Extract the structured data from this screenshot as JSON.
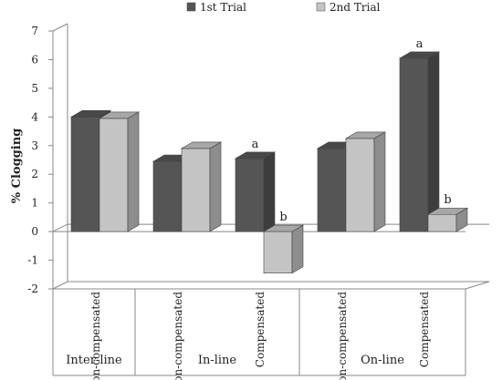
{
  "chart_data": {
    "type": "bar",
    "ylabel": "% Clogging",
    "ylim": [
      -2,
      7
    ],
    "yticks": [
      "7",
      "6",
      "5",
      "4",
      "3",
      "2",
      "1",
      "0",
      "-1",
      "-2"
    ],
    "grid": false,
    "legend_position": "top",
    "groups": [
      "Inter-line",
      "In-line",
      "On-line"
    ],
    "categories": [
      "Non-compensated",
      "Non-compensated",
      "Compensated",
      "Non-compensated",
      "Compensated"
    ],
    "category_groups": [
      0,
      1,
      1,
      2,
      2
    ],
    "series": [
      {
        "name": "1st Trial",
        "color": "#555555",
        "values": [
          4.0,
          2.45,
          2.55,
          2.9,
          6.05
        ]
      },
      {
        "name": "2nd Trial",
        "color": "#c4c4c4",
        "values": [
          3.95,
          2.9,
          -1.45,
          3.25,
          0.6
        ]
      }
    ],
    "annotations": [
      {
        "category_index": 2,
        "series_index": 0,
        "text": "a"
      },
      {
        "category_index": 2,
        "series_index": 1,
        "text": "b"
      },
      {
        "category_index": 4,
        "series_index": 0,
        "text": "a"
      },
      {
        "category_index": 4,
        "series_index": 1,
        "text": "b"
      }
    ]
  }
}
